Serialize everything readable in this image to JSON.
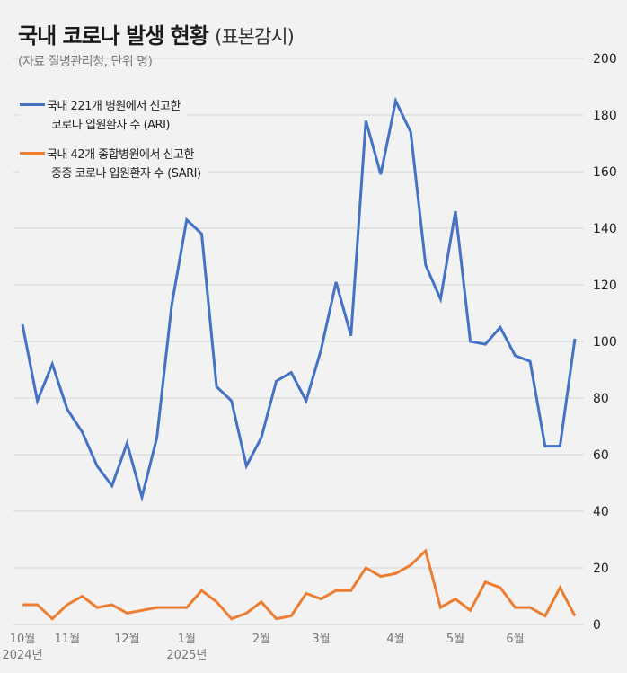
{
  "title": "국내 코로나 발생 현황",
  "title_suffix": "(표본감시)",
  "source": "(자료 질병관리청, 단위 명)",
  "colors": {
    "ari": "#4472c4",
    "sari": "#ed7d31",
    "grid": "#d4d4d4",
    "background": "#f2f2f2"
  },
  "legend": [
    {
      "line1": "국내 221개 병원에서 신고한",
      "line2": "코로나 입원환자 수 (ARI)"
    },
    {
      "line1": "국내 42개 종합병원에서 신고한",
      "line2": "중증 코로나 입원환자 수 (SARI)"
    }
  ],
  "chart_data": {
    "type": "line",
    "title": "국내 코로나 발생 현황 (표본감시)",
    "ylabel": "",
    "xlabel": "",
    "ylim": [
      0,
      200
    ],
    "yticks": [
      0,
      20,
      40,
      60,
      80,
      100,
      120,
      140,
      160,
      180,
      200
    ],
    "grid": true,
    "legend_position": "top-left",
    "x_tick_labels": [
      {
        "index": 0,
        "label": "10월",
        "year": "2024년"
      },
      {
        "index": 3,
        "label": "11월"
      },
      {
        "index": 7,
        "label": "12월"
      },
      {
        "index": 11,
        "label": "1월",
        "year": "2025년"
      },
      {
        "index": 16,
        "label": "2월"
      },
      {
        "index": 20,
        "label": "3월"
      },
      {
        "index": 25,
        "label": "4월"
      },
      {
        "index": 29,
        "label": "5월"
      },
      {
        "index": 33,
        "label": "6월"
      }
    ],
    "series": [
      {
        "name": "국내 221개 병원에서 신고한 코로나 입원환자 수 (ARI)",
        "color": "#4472c4",
        "values": [
          106,
          79,
          92,
          76,
          68,
          56,
          49,
          64,
          45,
          66,
          113,
          143,
          138,
          84,
          79,
          56,
          66,
          86,
          89,
          79,
          97,
          121,
          102,
          178,
          159,
          185,
          174,
          127,
          115,
          146,
          100,
          99,
          105,
          95,
          93,
          63,
          63,
          101
        ]
      },
      {
        "name": "국내 42개 종합병원에서 신고한 중증 코로나 입원환자 수 (SARI)",
        "color": "#ed7d31",
        "values": [
          7,
          7,
          2,
          7,
          10,
          6,
          7,
          4,
          5,
          6,
          6,
          6,
          12,
          8,
          2,
          4,
          8,
          2,
          3,
          11,
          9,
          12,
          12,
          20,
          17,
          18,
          21,
          26,
          6,
          9,
          5,
          15,
          13,
          6,
          6,
          3,
          13,
          3
        ]
      }
    ]
  }
}
